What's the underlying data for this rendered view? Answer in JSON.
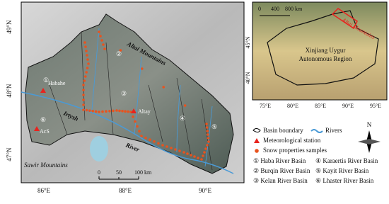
{
  "main_map": {
    "latitude_labels": [
      "49°N",
      "48°N",
      "47°N"
    ],
    "longitude_labels": [
      "86°E",
      "88°E",
      "90°E"
    ],
    "mountain_labels": [
      "Altai Mountains",
      "Sawir Mountains"
    ],
    "river_labels": [
      "Irtysh",
      "River"
    ],
    "basin_numbers": [
      "①",
      "②",
      "③",
      "④",
      "⑤",
      "⑥"
    ],
    "stations": [
      "Habahe",
      "Altay",
      "AcS"
    ],
    "scale": [
      "0",
      "50",
      "100 km"
    ]
  },
  "inset": {
    "longitude_labels": [
      "75°E",
      "80°E",
      "85°E",
      "90°E",
      "95°E"
    ],
    "latitude_labels": [
      "45°N",
      "40°N"
    ],
    "scale": [
      "0",
      "400",
      "800 km"
    ],
    "mountain_label": "Altai Mountains",
    "region_label": [
      "Xinjiang Uygur",
      "Autonomous Region"
    ]
  },
  "legend": {
    "items": [
      "Basin boundary",
      "Rivers",
      "Meteorological station",
      "Snow properties samples"
    ],
    "basins": [
      "① Haba River Basin",
      "② Burqin River Basin",
      "③ Kelan River Basin",
      "④ Karaertis River Basin",
      "⑤ Kayit River Basin",
      "⑥ Lhaster River Basin"
    ]
  },
  "north": "N"
}
